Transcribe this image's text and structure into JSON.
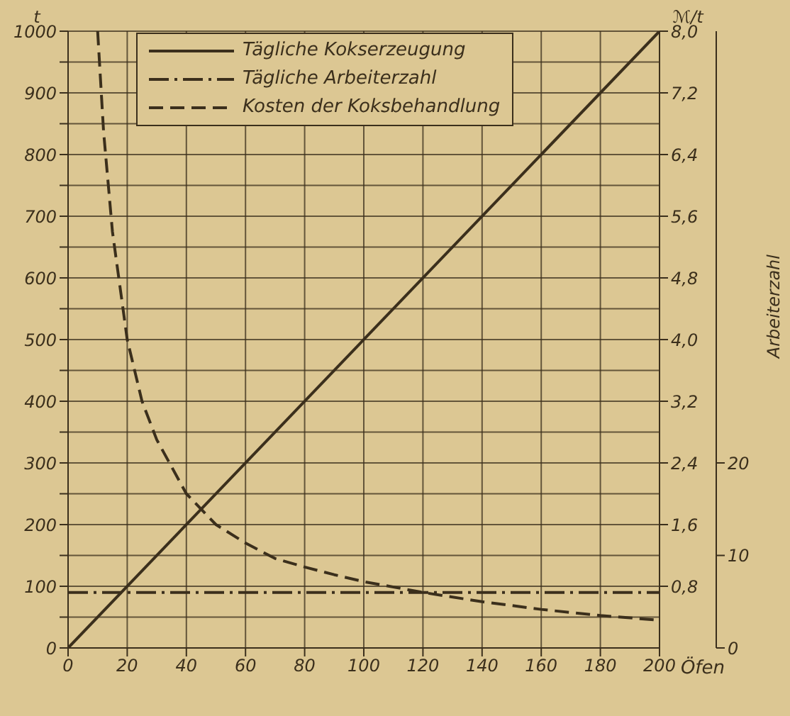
{
  "chart_data": {
    "type": "line",
    "xlabel": "Öfen",
    "ylabel": "t",
    "y2label": "ℳ/t",
    "y3label": "Arbeiterzahl",
    "xlim": [
      0,
      200
    ],
    "xticks": [
      0,
      20,
      40,
      60,
      80,
      100,
      120,
      140,
      160,
      180,
      200
    ],
    "ylim": [
      0,
      1000
    ],
    "yticks": [
      0,
      {
        "value": 50,
        "label": null
      },
      100,
      {
        "value": 150,
        "label": null
      },
      200,
      {
        "value": 250,
        "label": null
      },
      300,
      {
        "value": 350,
        "label": null
      },
      400,
      {
        "value": 450,
        "label": null
      },
      500,
      {
        "value": 550,
        "label": null
      },
      600,
      {
        "value": 650,
        "label": null
      },
      700,
      {
        "value": 750,
        "label": null
      },
      800,
      {
        "value": 850,
        "label": null
      },
      900,
      {
        "value": 950,
        "label": null
      },
      1000
    ],
    "y2lim": [
      0,
      8
    ],
    "y2ticks": [
      {
        "value": 0.8,
        "label": "0,8"
      },
      {
        "value": 1.6,
        "label": "1,6"
      },
      {
        "value": 2.4,
        "label": "2,4"
      },
      {
        "value": 3.2,
        "label": "3,2"
      },
      {
        "value": 4.0,
        "label": "4,0"
      },
      {
        "value": 4.8,
        "label": "4,8"
      },
      {
        "value": 5.6,
        "label": "5,6"
      },
      {
        "value": 6.4,
        "label": "6,4"
      },
      {
        "value": 7.2,
        "label": "7,2"
      },
      {
        "value": 8.0,
        "label": "8,0"
      }
    ],
    "y3lim": [
      0,
      66.67
    ],
    "y3ticks": [
      0,
      10,
      20
    ],
    "grid": true,
    "legend": "top left",
    "marker": "none",
    "series": [
      {
        "name": "Tägliche Kokserzeugung",
        "color": "#3b2f1c",
        "line_style": "solid",
        "x": [
          0,
          200
        ],
        "values": [
          0,
          1000
        ]
      },
      {
        "name": "Tägliche Arbeiterzahl",
        "color": "#3b2f1c",
        "line_style": "dashdot",
        "axis": "y3",
        "x": [
          0,
          200
        ],
        "values": [
          6,
          6
        ]
      },
      {
        "name": "Kosten der Koksbehandlung",
        "color": "#3b2f1c",
        "line_style": "dashed",
        "axis": "y2",
        "x": [
          10,
          12,
          15,
          20,
          25,
          30,
          40,
          50,
          60,
          70,
          80,
          90,
          100,
          120,
          140,
          160,
          180,
          200
        ],
        "values": [
          8.0,
          6.7,
          5.4,
          4.0,
          3.2,
          2.7,
          2.0,
          1.6,
          1.36,
          1.16,
          1.05,
          0.95,
          0.86,
          0.72,
          0.6,
          0.5,
          0.42,
          0.36
        ]
      }
    ]
  }
}
